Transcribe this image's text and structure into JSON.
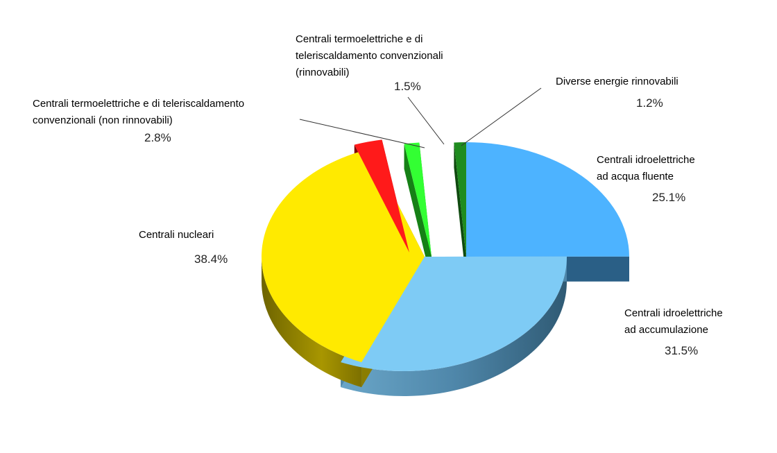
{
  "chart_data": {
    "type": "pie",
    "style": "3d-exploded",
    "slices": [
      {
        "label_lines": [
          "Centrali idroelettriche",
          "ad acqua fluente"
        ],
        "value": 25.1,
        "value_label": "25.1%",
        "color": "#4db3ff",
        "side_color": "#2a5f86"
      },
      {
        "label_lines": [
          "Centrali idroelettriche",
          "ad accumulazione"
        ],
        "value": 31.5,
        "value_label": "31.5%",
        "color": "#7ecbf5",
        "side_color": "#4f87aa"
      },
      {
        "label_lines": [
          "Centrali nucleari"
        ],
        "value": 38.4,
        "value_label": "38.4%",
        "color": "#ffea00",
        "side_color": "#8a7d00"
      },
      {
        "label_lines": [
          "Centrali termoelettriche e di teleriscaldamento",
          "convenzionali (non rinnovabili)"
        ],
        "value": 2.8,
        "value_label": "2.8%",
        "color": "#ff1a1a",
        "side_color": "#7a0000"
      },
      {
        "label_lines": [
          "Centrali termoelettriche e di",
          "teleriscaldamento convenzionali",
          "(rinnovabili)"
        ],
        "value": 1.5,
        "value_label": "1.5%",
        "color": "#33ff33",
        "side_color": "#168016"
      },
      {
        "label_lines": [
          "Diverse energie rinnovabili"
        ],
        "value": 1.2,
        "value_label": "1.2%",
        "color": "#1f8c1f",
        "side_color": "#0f4a0f"
      }
    ],
    "title": "",
    "legend": "none"
  }
}
